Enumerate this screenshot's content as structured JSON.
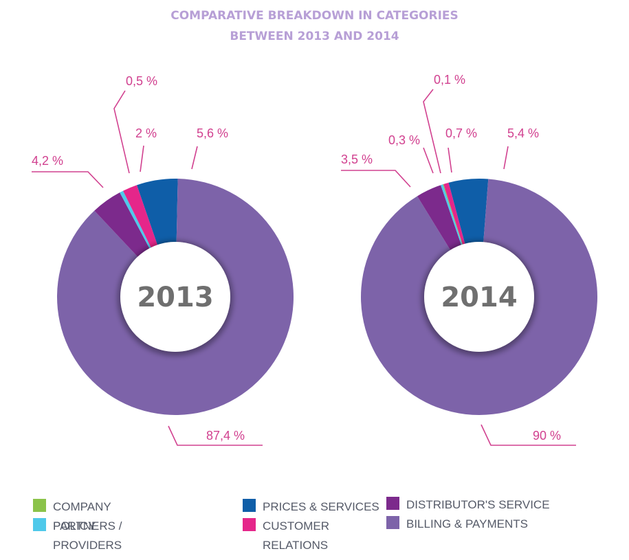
{
  "title": {
    "line1": "COMPARATIVE BREAKDOWN IN CATEGORIES",
    "line2": "BETWEEN 2013 AND 2014"
  },
  "colors": {
    "title": "#b79fd6",
    "label": "#d1408f",
    "company_policy": "#8bc34a",
    "partners_providers": "#4fc9ea",
    "prices_services": "#0f5ea8",
    "customer_relations": "#e5268a",
    "distributors_service": "#7c2a8c",
    "billing_payments": "#7d63a9"
  },
  "chart_data": [
    {
      "type": "pie",
      "donut": true,
      "center_label": "2013",
      "slices": [
        {
          "category": "PRICES & SERVICES",
          "value": 5.6,
          "label": "5,6 %"
        },
        {
          "category": "BILLING & PAYMENTS",
          "value": 87.4,
          "label": "87,4 %"
        },
        {
          "category": "DISTRIBUTOR'S SERVICE",
          "value": 4.2,
          "label": "4,2 %"
        },
        {
          "category": "PARTNERS / PROVIDERS",
          "value": 0.5,
          "label": "0,5 %"
        },
        {
          "category": "CUSTOMER RELATIONS",
          "value": 2,
          "label": "2 %"
        }
      ]
    },
    {
      "type": "pie",
      "donut": true,
      "center_label": "2014",
      "slices": [
        {
          "category": "PRICES & SERVICES",
          "value": 5.4,
          "label": "5,4 %"
        },
        {
          "category": "BILLING & PAYMENTS",
          "value": 90,
          "label": "90 %"
        },
        {
          "category": "DISTRIBUTOR'S SERVICE",
          "value": 3.5,
          "label": "3,5 %"
        },
        {
          "category": "PARTNERS / PROVIDERS",
          "value": 0.3,
          "label": "0,3 %"
        },
        {
          "category": "COMPANY POLICY",
          "value": 0.1,
          "label": "0,1 %"
        },
        {
          "category": "CUSTOMER RELATIONS",
          "value": 0.7,
          "label": "0,7 %"
        }
      ]
    }
  ],
  "legend": [
    {
      "label": "COMPANY POLICY",
      "color": "#8bc34a"
    },
    {
      "label": "PARTNERS / PROVIDERS",
      "color": "#4fc9ea"
    },
    {
      "label": "PRICES & SERVICES",
      "color": "#0f5ea8"
    },
    {
      "label": "CUSTOMER RELATIONS",
      "color": "#e5268a"
    },
    {
      "label": "DISTRIBUTOR'S SERVICE",
      "color": "#7c2a8c"
    },
    {
      "label": "BILLING & PAYMENTS",
      "color": "#7d63a9"
    }
  ]
}
